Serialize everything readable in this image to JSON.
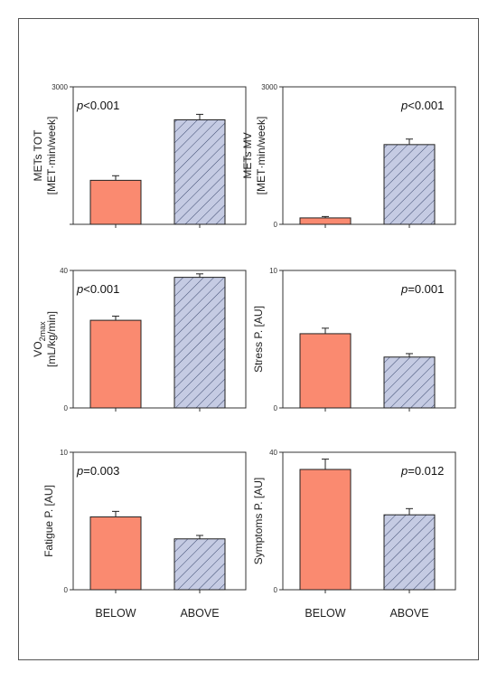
{
  "colors": {
    "below": "#fa8a70",
    "above": "#c5cbe3",
    "hatch": "#3d4a70",
    "axis": "#333333"
  },
  "chart_data": [
    {
      "type": "bar",
      "categories": [
        "BELOW",
        "ABOVE"
      ],
      "ylabel": "METs TOT",
      "ylabel_unit": "[MET·min/week]",
      "p_prefix": "p",
      "p_value": "<0.001",
      "p_position": "left",
      "ylim": [
        0,
        3000
      ],
      "ticks": [
        "0",
        "3000"
      ],
      "show_zero_tick": false,
      "values": [
        960,
        2280
      ],
      "errors": [
        100,
        120
      ]
    },
    {
      "type": "bar",
      "categories": [
        "BELOW",
        "ABOVE"
      ],
      "ylabel": "METs MV",
      "ylabel_unit": "[MET·min/week]",
      "p_prefix": "p",
      "p_value": "<0.001",
      "p_position": "right",
      "ylim": [
        0,
        3000
      ],
      "ticks": [
        "0",
        "3000"
      ],
      "show_zero_tick": true,
      "values": [
        140,
        1740
      ],
      "errors": [
        30,
        120
      ]
    },
    {
      "type": "bar",
      "categories": [
        "BELOW",
        "ABOVE"
      ],
      "ylabel": "VO",
      "ylabel_sub": "2max",
      "ylabel_unit": "[mL/kg/min]",
      "p_prefix": "p",
      "p_value": "<0.001",
      "p_position": "left",
      "ylim": [
        0,
        40
      ],
      "ticks": [
        "0",
        "40"
      ],
      "show_zero_tick": true,
      "values": [
        25.5,
        38.0
      ],
      "errors": [
        1.2,
        1.0
      ]
    },
    {
      "type": "bar",
      "categories": [
        "BELOW",
        "ABOVE"
      ],
      "ylabel": "Stress P. [AU]",
      "ylabel_unit": "",
      "p_prefix": "p",
      "p_value": "=0.001",
      "p_position": "right",
      "ylim": [
        0,
        10
      ],
      "ticks": [
        "0",
        "10"
      ],
      "show_zero_tick": true,
      "values": [
        5.4,
        3.7
      ],
      "errors": [
        0.4,
        0.25
      ]
    },
    {
      "type": "bar",
      "categories": [
        "BELOW",
        "ABOVE"
      ],
      "ylabel": "Fatigue P. [AU]",
      "ylabel_unit": "",
      "p_prefix": "p",
      "p_value": "=0.003",
      "p_position": "left",
      "ylim": [
        0,
        10
      ],
      "ticks": [
        "0",
        "10"
      ],
      "show_zero_tick": true,
      "values": [
        5.3,
        3.7
      ],
      "errors": [
        0.4,
        0.25
      ]
    },
    {
      "type": "bar",
      "categories": [
        "BELOW",
        "ABOVE"
      ],
      "ylabel": "Symptoms P. [AU]",
      "ylabel_unit": "",
      "p_prefix": "p",
      "p_value": "=0.012",
      "p_position": "right",
      "ylim": [
        0,
        40
      ],
      "ticks": [
        "0",
        "40"
      ],
      "show_zero_tick": true,
      "values": [
        35.0,
        21.8
      ],
      "errors": [
        3.0,
        1.8
      ]
    }
  ]
}
